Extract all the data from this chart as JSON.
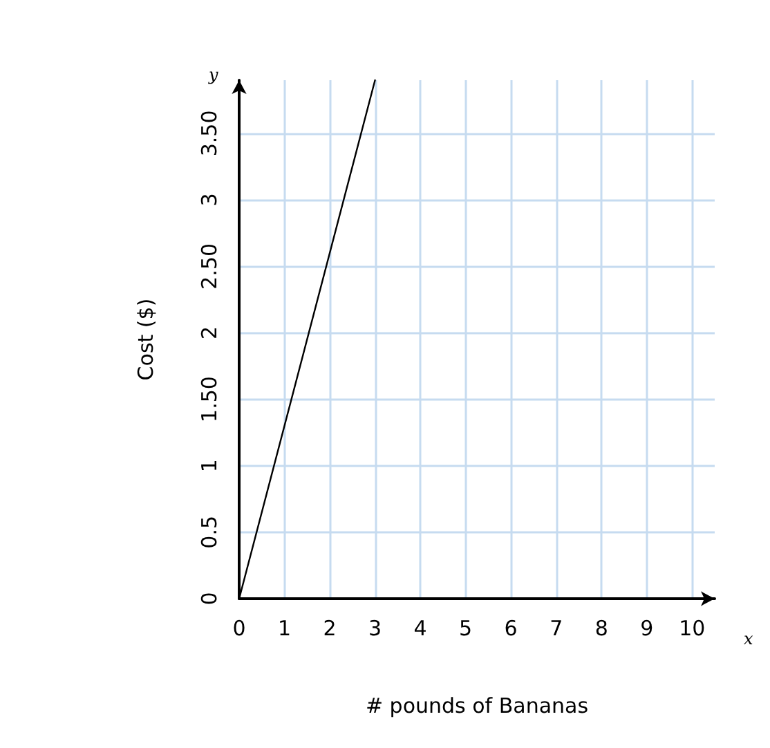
{
  "chart_data": {
    "type": "line",
    "xlabel": "# pounds of Bananas",
    "ylabel": "Cost ($)",
    "x": [
      0,
      3
    ],
    "series": [
      {
        "color": "#000000",
        "values": [
          0,
          3.9
        ]
      }
    ],
    "xlim": [
      0,
      10.5
    ],
    "xticks": [
      0,
      1,
      2,
      3,
      4,
      5,
      6,
      7,
      8,
      9,
      10
    ],
    "ylim": [
      0,
      3.9
    ],
    "yticks": [
      0,
      {
        "value": 0.5,
        "label": "0.5"
      },
      1,
      {
        "value": 1.5,
        "label": "1.50"
      },
      2,
      {
        "value": 2.5,
        "label": "2.50"
      },
      3,
      {
        "value": 3.5,
        "label": "3.50"
      }
    ],
    "grid": true,
    "marker": "none",
    "line_style": "solid",
    "annotations": [
      "y",
      "x"
    ]
  }
}
